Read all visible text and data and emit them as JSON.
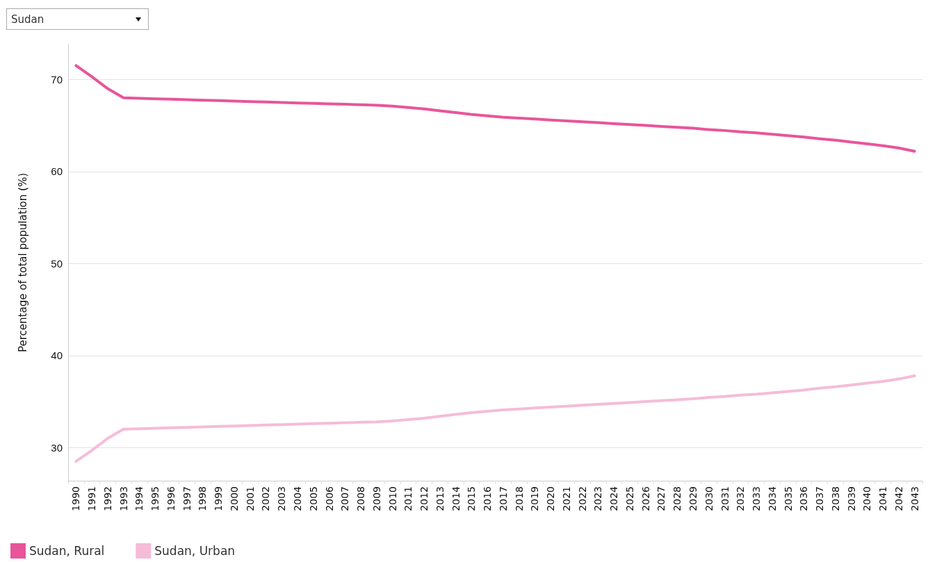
{
  "chart_data": {
    "type": "line",
    "ylabel": "Percentage of total population (%)",
    "annotations": [
      "Sudan"
    ],
    "categories": [
      "1990",
      "1991",
      "1992",
      "1993",
      "1994",
      "1995",
      "1996",
      "1997",
      "1998",
      "1999",
      "2000",
      "2001",
      "2002",
      "2003",
      "2004",
      "2005",
      "2006",
      "2007",
      "2008",
      "2009",
      "2010",
      "2011",
      "2012",
      "2013",
      "2014",
      "2015",
      "2016",
      "2017",
      "2018",
      "2019",
      "2020",
      "2021",
      "2022",
      "2023",
      "2024",
      "2025",
      "2026",
      "2027",
      "2028",
      "2029",
      "2030",
      "2031",
      "2032",
      "2033",
      "2034",
      "2035",
      "2036",
      "2037",
      "2038",
      "2039",
      "2040",
      "2041",
      "2042",
      "2043"
    ],
    "series": [
      {
        "name": "Sudan, Rural",
        "color": "#e8559a",
        "values": [
          71.5,
          70.3,
          69.0,
          68.0,
          67.95,
          67.9,
          67.85,
          67.8,
          67.75,
          67.7,
          67.65,
          67.6,
          67.55,
          67.5,
          67.45,
          67.4,
          67.35,
          67.3,
          67.25,
          67.2,
          67.1,
          66.95,
          66.8,
          66.6,
          66.4,
          66.2,
          66.05,
          65.9,
          65.8,
          65.7,
          65.6,
          65.5,
          65.4,
          65.3,
          65.2,
          65.1,
          65.0,
          64.9,
          64.8,
          64.7,
          64.55,
          64.45,
          64.3,
          64.2,
          64.05,
          63.9,
          63.75,
          63.55,
          63.4,
          63.2,
          63.0,
          62.8,
          62.55,
          62.2
        ]
      },
      {
        "name": "Sudan, Urban",
        "color": "#f5bcd8",
        "values": [
          28.5,
          29.7,
          31.0,
          32.0,
          32.05,
          32.1,
          32.15,
          32.2,
          32.25,
          32.3,
          32.35,
          32.4,
          32.45,
          32.5,
          32.55,
          32.6,
          32.65,
          32.7,
          32.75,
          32.8,
          32.9,
          33.05,
          33.2,
          33.4,
          33.6,
          33.8,
          33.95,
          34.1,
          34.2,
          34.3,
          34.4,
          34.5,
          34.6,
          34.7,
          34.8,
          34.9,
          35.0,
          35.1,
          35.2,
          35.3,
          35.45,
          35.55,
          35.7,
          35.8,
          35.95,
          36.1,
          36.25,
          36.45,
          36.6,
          36.8,
          37.0,
          37.2,
          37.45,
          37.8
        ]
      }
    ],
    "ylim": [
      26.4,
      73.8
    ],
    "yticks": [
      30,
      40,
      50,
      60,
      70
    ],
    "grid": "y",
    "legend": "bottom left",
    "marker": "none",
    "line_style": "solid"
  }
}
